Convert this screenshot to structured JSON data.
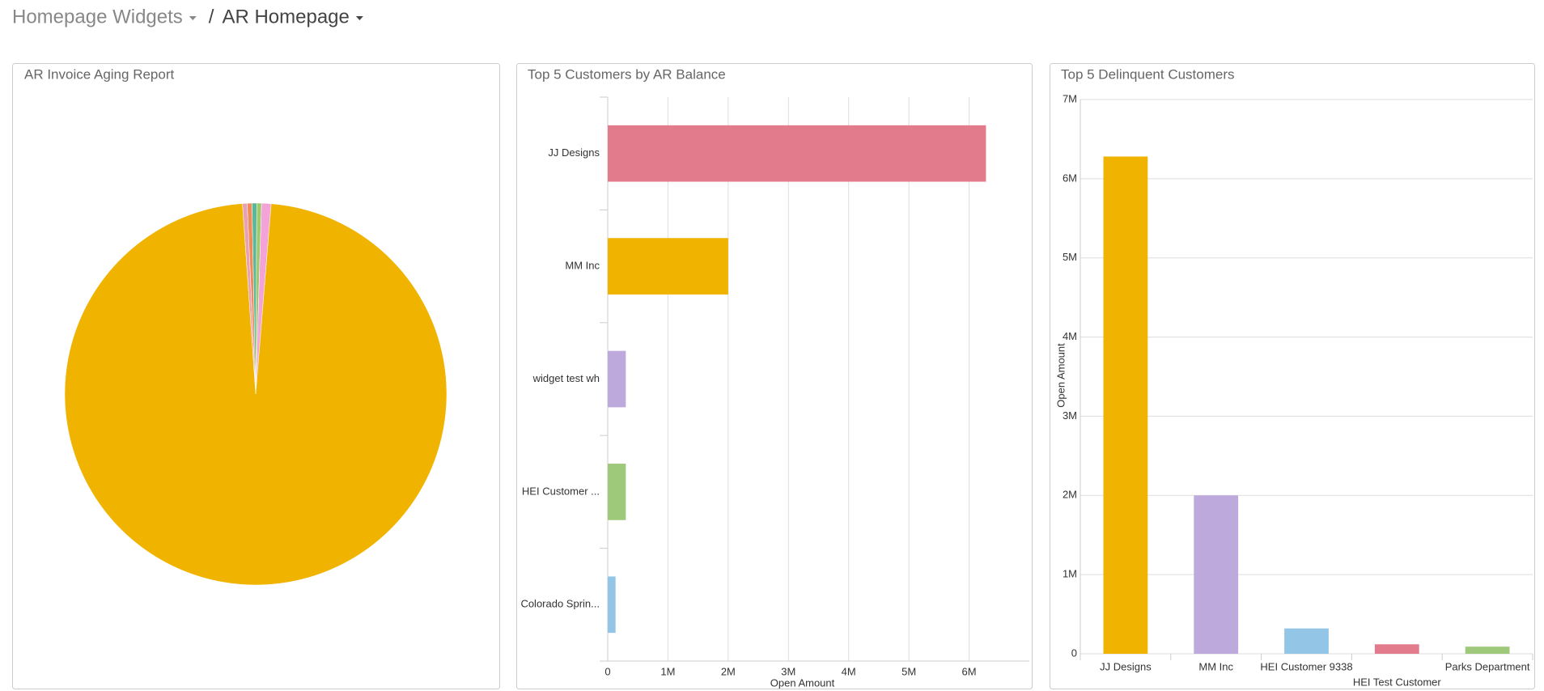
{
  "header": {
    "breadcrumb": [
      "Homepage Widgets",
      "AR Homepage"
    ],
    "separator": "/"
  },
  "chart_data": [
    {
      "type": "pie",
      "title": "AR Invoice Aging Report",
      "values": [
        0.4,
        0.4,
        0.4,
        0.4,
        0.8,
        97.6
      ],
      "colors": [
        "#e8a0b4",
        "#f08c5a",
        "#59b89a",
        "#a0c96e",
        "#f4a3d8",
        "#f0b400"
      ]
    },
    {
      "type": "barh",
      "title": "Top 5 Customers by AR Balance",
      "categories": [
        "JJ Designs",
        "MM Inc",
        "widget test wh",
        "HEI Customer ...",
        "Colorado Sprin..."
      ],
      "values": [
        6280000,
        2000000,
        300000,
        300000,
        130000
      ],
      "colors": [
        "#e27b8c",
        "#f0b400",
        "#bda9dc",
        "#9ec97b",
        "#92c5e6"
      ],
      "xlabel": "Open Amount",
      "xlim": [
        0,
        7000000
      ],
      "xticks": [
        0,
        {
          "value": 1000000,
          "label": "1M"
        },
        {
          "value": 2000000,
          "label": "2M"
        },
        {
          "value": 3000000,
          "label": "3M"
        },
        {
          "value": 4000000,
          "label": "4M"
        },
        {
          "value": 5000000,
          "label": "5M"
        },
        {
          "value": 6000000,
          "label": "6M"
        }
      ],
      "grid": true
    },
    {
      "type": "bar",
      "title": "Top 5 Delinquent Customers",
      "categories": [
        "JJ Designs",
        "MM Inc",
        "HEI Customer 9338",
        "HEI Test Customer",
        "Parks Department"
      ],
      "values": [
        6280000,
        2000000,
        320000,
        120000,
        90000
      ],
      "colors": [
        "#f0b400",
        "#bda9dc",
        "#92c5e6",
        "#e27b8c",
        "#9ec97b"
      ],
      "ylabel": "Open Amount",
      "ylim": [
        0,
        7000000
      ],
      "yticks": [
        0,
        {
          "value": 1000000,
          "label": "1M"
        },
        {
          "value": 2000000,
          "label": "2M"
        },
        {
          "value": 3000000,
          "label": "3M"
        },
        {
          "value": 4000000,
          "label": "4M"
        },
        {
          "value": 5000000,
          "label": "5M"
        },
        {
          "value": 6000000,
          "label": "6M"
        },
        {
          "value": 7000000,
          "label": "7M"
        }
      ],
      "grid": true
    }
  ]
}
